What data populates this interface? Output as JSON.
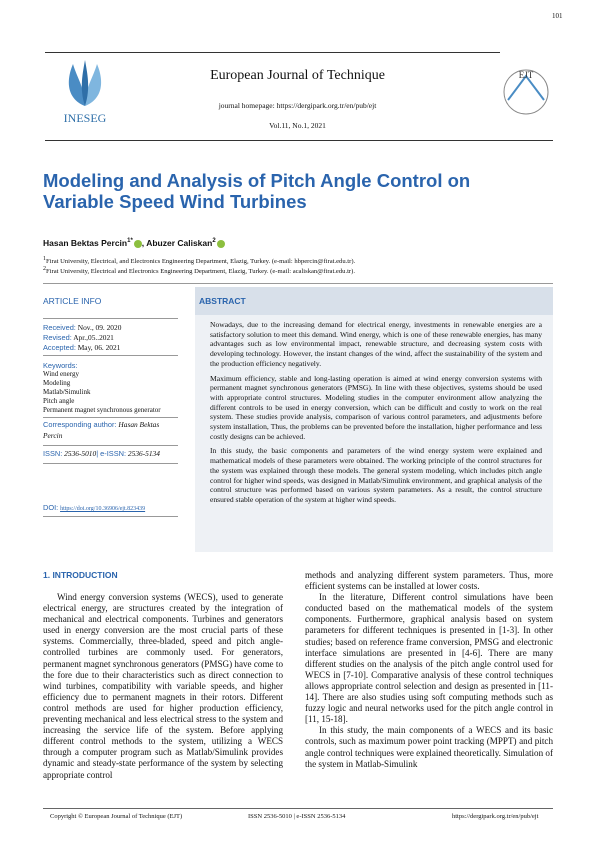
{
  "header": {
    "page_number": "101",
    "journal": "European Journal of Technique",
    "homepage": "journal homepage: https://dergipark.org.tr/en/pub/ejt",
    "volume": "Vol.11, No.1, 2021",
    "left_logo": "INESEG",
    "right_logo": "EJT"
  },
  "title": "Modeling and Analysis of Pitch Angle Control on Variable Speed Wind Turbines",
  "authors": [
    {
      "name": "Hasan Bektas Percin",
      "mark": "1*"
    },
    {
      "name": ", Abuzer Caliskan",
      "mark": "2"
    }
  ],
  "affiliations": [
    {
      "mark": "1",
      "text": "Firat University, Electrical, and Electronics Engineering Department, Elazig, Turkey. (e-mail: hbpercin@firat.edu.tr)."
    },
    {
      "mark": "2",
      "text": "Firat University, Electrical and Electronics Engineering Department, Elazig, Turkey. (e-mail: acaliskan@firat.edu.tr)."
    }
  ],
  "article_info": {
    "heading": "ARTICLE INFO",
    "dates": [
      {
        "label": "Received:",
        "value": "Nov., 09. 2020"
      },
      {
        "label": "Revised:",
        "value": "Apr.,05..2021"
      },
      {
        "label": "Accepted:",
        "value": "May, 06. 2021"
      }
    ],
    "keywords_label": "Keywords:",
    "keywords": [
      "Wind energy",
      "Modeling",
      "Matlab/Simulink",
      "Pitch angle",
      "Permanent magnet synchronous generator"
    ],
    "corresponding_label": "Corresponding author:",
    "corresponding_name": "Hasan Bektas Percin",
    "issn_label": "ISSN:",
    "issn": "2536-5010",
    "eissn_label": "| e-ISSN:",
    "eissn": "2536-5134",
    "doi_label": "DOI:",
    "doi": "https://doi.org/10.36906/ejt.823439"
  },
  "abstract": {
    "heading": "ABSTRACT",
    "paragraphs": [
      "Nowadays, due to the increasing demand for electrical energy, investments in renewable energies are a satisfactory solution to meet this demand. Wind energy, which is one of these renewable energies, has many advantages such as low environmental impact, renewable structure, and decreasing system costs with developing technology. However, the instant changes of the wind, affect the sustainability of the system and the production efficiency negatively.",
      "Maximum efficiency, stable and long-lasting operation is aimed at wind energy conversion systems with permanent magnet synchronous generators (PMSG). In line with these objectives, systems should be used with appropriate control structures. Modeling studies in the computer environment allow analyzing the different controls to be used in energy conversion, which can be difficult and costly to work on the real system. These studies provide analysis, comparison of various control parameters, and adjustments before system installation, Thus, the problems can be prevented before the installation, higher performance and less costly designs can be achieved.",
      "In this study, the basic components and parameters of the wind energy system were explained and mathematical models of these parameters were obtained. The working principle of the control structures for the system was explained through these models. The general system modeling, which includes pitch angle control for higher wind speeds, was designed in Matlab/Simulink environment, and graphical analysis of the control structure was performed based on various system parameters. As a result, the control structure ensured stable operation of the system at higher wind speeds."
    ]
  },
  "introduction": {
    "heading": "1.  INTRODUCTION",
    "left_paragraphs": [
      "Wind energy conversion systems (WECS), used to generate electrical energy, are structures created by the integration of mechanical and electrical components. Turbines and generators used in energy conversion are the most crucial parts of these systems. Commercially, three-bladed, speed and pitch angle-controlled turbines are commonly used. For generators, permanent magnet synchronous generators (PMSG) have come to the fore due to their characteristics such as direct connection to wind turbines, compatibility with variable speeds, and higher efficiency due to permanent magnets in their rotors. Different control methods are used for higher production efficiency, preventing mechanical and less electrical stress to the system and increasing the service life of the system. Before applying different control methods to the system, utilizing a WECS through a computer program such as Matlab/Simulink provides dynamic and steady-state performance of the system by selecting appropriate control"
    ],
    "right_continuation": "methods and analyzing different system parameters. Thus, more efficient systems can be installed at lower costs.",
    "right_paragraphs": [
      "In the literature, Different control simulations have been conducted based on the mathematical models of the system components. Furthermore, graphical analysis based on system parameters for different techniques is presented in [1-3]. In other studies; based on reference frame conversion, PMSG and electronic interface simulations are presented in [4-6]. There are many different studies on the analysis of the pitch angle control used for WECS in [7-10]. Comparative analysis of these control techniques allows appropriate control selection and design as presented in [11-14]. There are also studies using soft computing methods such as fuzzy logic and neural networks used for the pitch angle control in [11, 15-18].",
      "In this study, the main components of a WECS and its basic controls, such as maximum power point tracking (MPPT) and pitch angle control techniques were explained theoretically. Simulation of the system in Matlab-Simulink"
    ]
  },
  "footer": {
    "copyright": "Copyright © European Journal of Technique (EJT)",
    "issn": "ISSN 2536-5010 | e-ISSN 2536-5134",
    "url": "https://dergipark.org.tr/en/pub/ejt"
  }
}
